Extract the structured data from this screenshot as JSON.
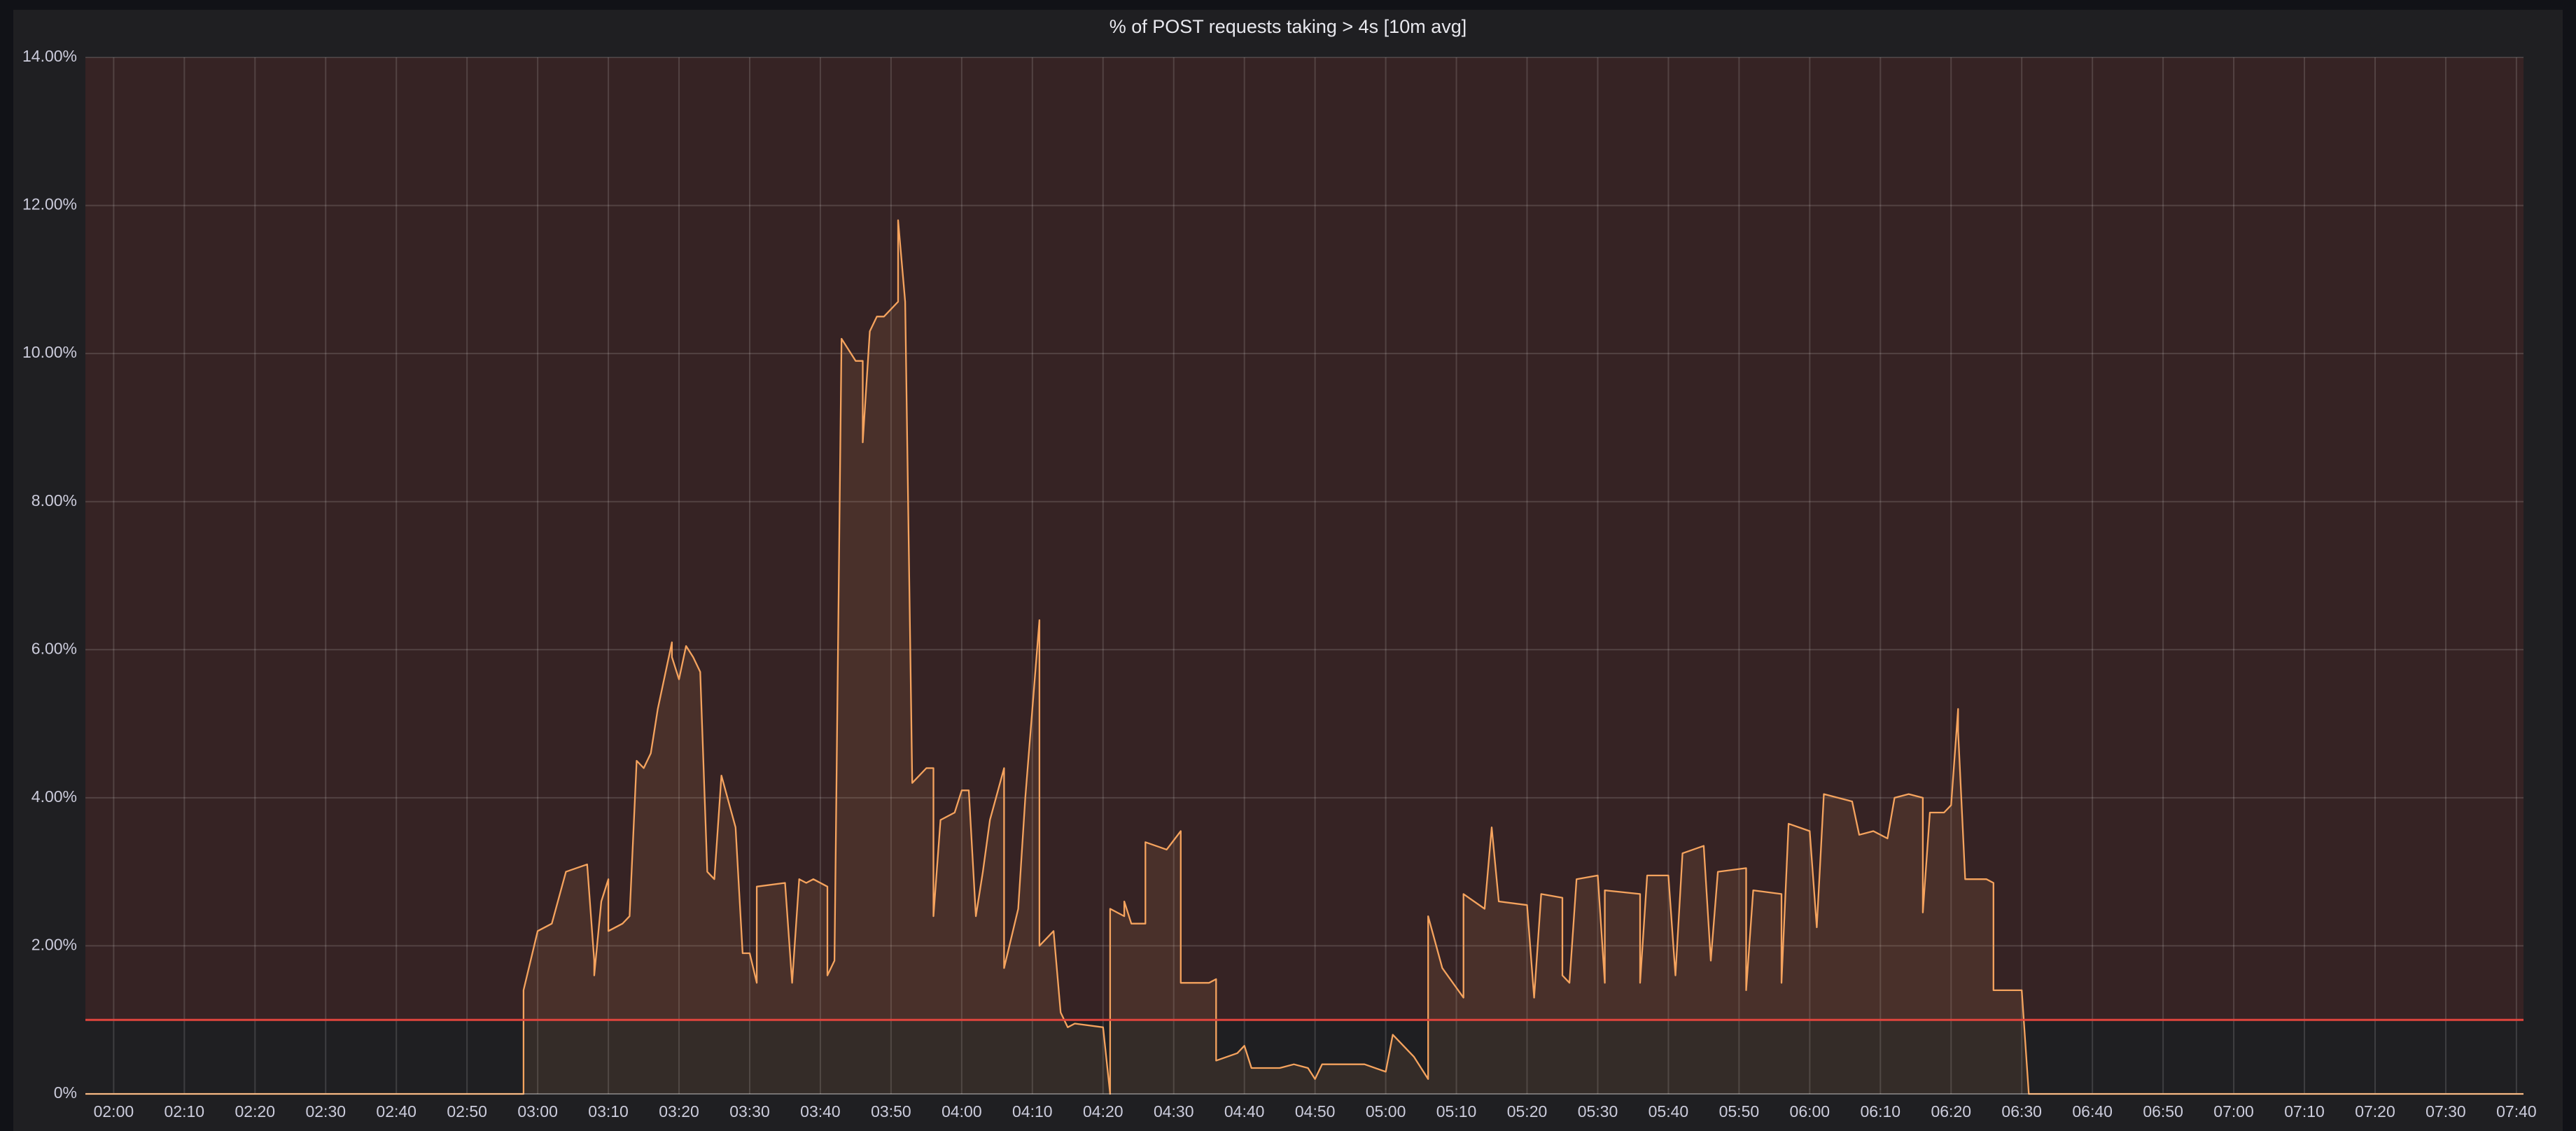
{
  "chart_data": {
    "type": "line",
    "title": "% of POST requests taking > 4s [10m avg]",
    "color": "#f5a35e",
    "threshold": 1,
    "threshold_color": "#e0453d",
    "grid": true,
    "xlim": [
      "01:56",
      "07:41"
    ],
    "xticks": [
      "02:00",
      "02:10",
      "02:20",
      "02:30",
      "02:40",
      "02:50",
      "03:00",
      "03:10",
      "03:20",
      "03:30",
      "03:40",
      "03:50",
      "04:00",
      "04:10",
      "04:20",
      "04:30",
      "04:40",
      "04:50",
      "05:00",
      "05:10",
      "05:20",
      "05:30",
      "05:40",
      "05:50",
      "06:00",
      "06:10",
      "06:20",
      "06:30",
      "06:40",
      "06:50",
      "07:00",
      "07:10",
      "07:20",
      "07:30",
      "07:40"
    ],
    "ylim": [
      0,
      14
    ],
    "yticks": [
      {
        "value": 0,
        "label": "0%"
      },
      {
        "value": 2,
        "label": "2.00%"
      },
      {
        "value": 4,
        "label": "4.00%"
      },
      {
        "value": 6,
        "label": "6.00%"
      },
      {
        "value": 8,
        "label": "8.00%"
      },
      {
        "value": 10,
        "label": "10.00%"
      },
      {
        "value": 12,
        "label": "12.00%"
      },
      {
        "value": 14,
        "label": "14.00%"
      }
    ],
    "x": [
      "01:56",
      "02:58",
      "02:58",
      "03:00",
      "03:02",
      "03:04",
      "03:07",
      "03:08",
      "03:08",
      "03:09",
      "03:10",
      "03:10",
      "03:12",
      "03:13",
      "03:14",
      "03:15",
      "03:16",
      "03:17",
      "03:19",
      "03:19",
      "03:20",
      "03:21",
      "03:22",
      "03:23",
      "03:24",
      "03:25",
      "03:26",
      "03:28",
      "03:29",
      "03:30",
      "03:31",
      "03:31",
      "03:35",
      "03:36",
      "03:37",
      "03:38",
      "03:39",
      "03:41",
      "03:41",
      "03:42",
      "03:43",
      "03:45",
      "03:46",
      "03:46",
      "03:47",
      "03:48",
      "03:49",
      "03:51",
      "03:51",
      "03:52",
      "03:53",
      "03:55",
      "03:56",
      "03:56",
      "03:57",
      "03:59",
      "04:00",
      "04:01",
      "04:02",
      "04:03",
      "04:04",
      "04:06",
      "04:06",
      "04:08",
      "04:09",
      "04:11",
      "04:11",
      "04:13",
      "04:14",
      "04:15",
      "04:16",
      "04:20",
      "04:21",
      "04:21",
      "04:23",
      "04:23",
      "04:24",
      "04:26",
      "04:26",
      "04:29",
      "04:31",
      "04:31",
      "04:35",
      "04:36",
      "04:36",
      "04:39",
      "04:40",
      "04:41",
      "04:45",
      "04:47",
      "04:49",
      "04:50",
      "04:51",
      "04:57",
      "05:00",
      "05:01",
      "05:04",
      "05:06",
      "05:06",
      "05:08",
      "05:11",
      "05:11",
      "05:14",
      "05:15",
      "05:16",
      "05:20",
      "05:21",
      "05:22",
      "05:25",
      "05:25",
      "05:26",
      "05:27",
      "05:30",
      "05:31",
      "05:31",
      "05:36",
      "05:36",
      "05:37",
      "05:40",
      "05:41",
      "05:42",
      "05:45",
      "05:46",
      "05:47",
      "05:51",
      "05:51",
      "05:52",
      "05:56",
      "05:56",
      "05:57",
      "06:00",
      "06:01",
      "06:02",
      "06:06",
      "06:07",
      "06:09",
      "06:11",
      "06:12",
      "06:14",
      "06:16",
      "06:16",
      "06:17",
      "06:19",
      "06:20",
      "06:21",
      "06:21",
      "06:22",
      "06:25",
      "06:26",
      "06:26",
      "06:30",
      "06:31",
      "07:41"
    ],
    "values": [
      0,
      0,
      1.4,
      2.2,
      2.3,
      3.0,
      3.1,
      1.8,
      1.6,
      2.6,
      2.9,
      2.2,
      2.3,
      2.4,
      4.5,
      4.4,
      4.6,
      5.2,
      6.1,
      5.9,
      5.6,
      6.05,
      5.9,
      5.7,
      3.0,
      2.9,
      4.3,
      3.6,
      1.9,
      1.9,
      1.5,
      2.8,
      2.85,
      1.5,
      2.9,
      2.85,
      2.9,
      2.8,
      1.6,
      1.8,
      10.2,
      9.9,
      9.9,
      8.8,
      10.3,
      10.5,
      10.5,
      10.7,
      11.8,
      10.7,
      4.2,
      4.4,
      4.4,
      2.4,
      3.7,
      3.8,
      4.1,
      4.1,
      2.4,
      3.0,
      3.7,
      4.4,
      1.7,
      2.5,
      4.0,
      6.4,
      2.0,
      2.2,
      1.1,
      0.9,
      0.95,
      0.9,
      0,
      2.5,
      2.4,
      2.6,
      2.3,
      2.3,
      3.4,
      3.3,
      3.55,
      1.5,
      1.5,
      1.55,
      0.45,
      0.55,
      0.65,
      0.35,
      0.35,
      0.4,
      0.35,
      0.2,
      0.4,
      0.4,
      0.3,
      0.8,
      0.5,
      0.2,
      2.4,
      1.7,
      1.3,
      2.7,
      2.5,
      3.6,
      2.6,
      2.55,
      1.3,
      2.7,
      2.65,
      1.6,
      1.5,
      2.9,
      2.95,
      1.5,
      2.75,
      2.7,
      1.5,
      2.95,
      2.95,
      1.6,
      3.25,
      3.35,
      1.8,
      3.0,
      3.05,
      1.4,
      2.75,
      2.7,
      1.5,
      3.65,
      3.55,
      2.25,
      4.05,
      3.95,
      3.5,
      3.55,
      3.45,
      4.0,
      4.05,
      4.0,
      2.45,
      3.8,
      3.8,
      3.9,
      5.2,
      4.9,
      2.9,
      2.9,
      2.85,
      1.4,
      1.4,
      0,
      0
    ]
  }
}
